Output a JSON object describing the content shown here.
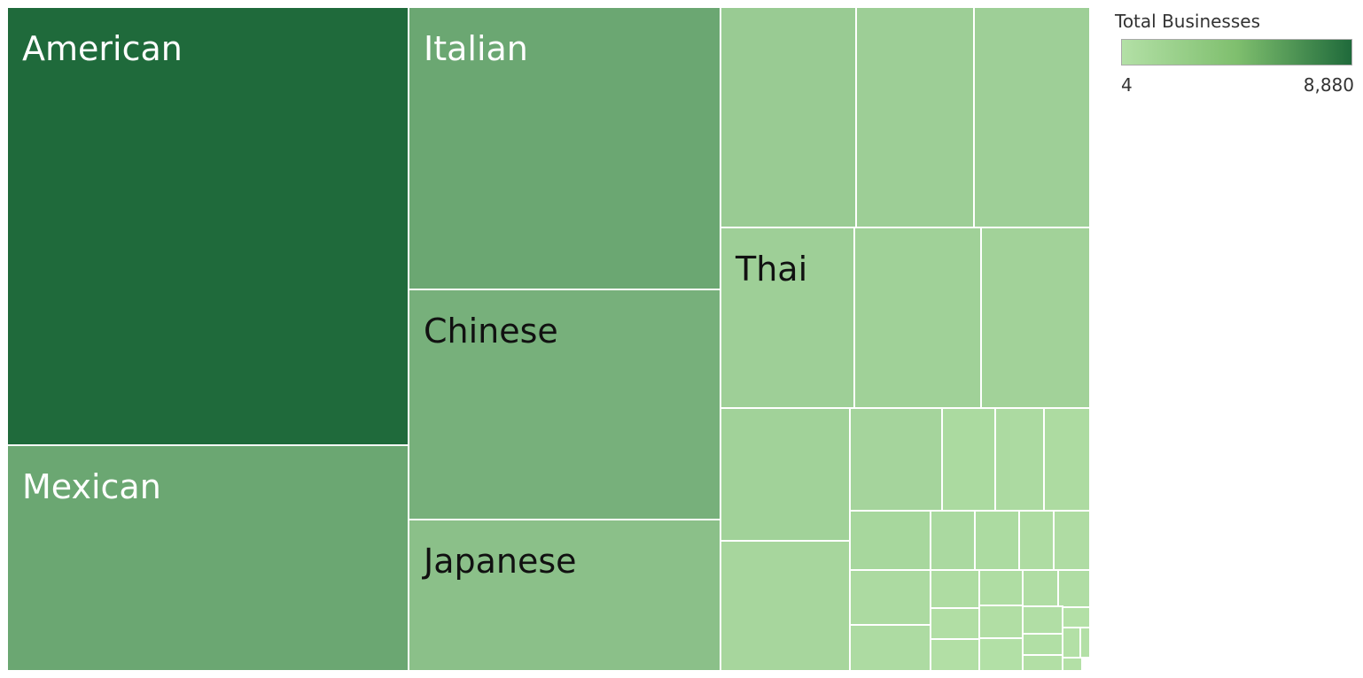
{
  "chart_data": {
    "type": "treemap",
    "measure": "Total Businesses",
    "color_range": {
      "min": 4,
      "max": 8880,
      "min_label": "4",
      "max_label": "8,880",
      "low_color": "#b3e0a6",
      "high_color": "#1f6a3b"
    },
    "labeled_items": [
      {
        "name": "American",
        "value": 8880
      },
      {
        "name": "Mexican",
        "value": 4300
      },
      {
        "name": "Italian",
        "value": 4300
      },
      {
        "name": "Chinese",
        "value": 3600
      },
      {
        "name": "Japanese",
        "value": 2400
      },
      {
        "name": "Thai",
        "value": 1250
      }
    ],
    "unlabeled_values": [
      1560,
      1330,
      1280,
      1140,
      1050,
      1080,
      730,
      870,
      480,
      430,
      380,
      710,
      540,
      410,
      320,
      270,
      440,
      310,
      250,
      200,
      360,
      150,
      135,
      195,
      125,
      95,
      60,
      50,
      40,
      20,
      12,
      8,
      4
    ]
  },
  "legend": {
    "title": "Total Businesses",
    "min_label": "4",
    "max_label": "8,880"
  }
}
